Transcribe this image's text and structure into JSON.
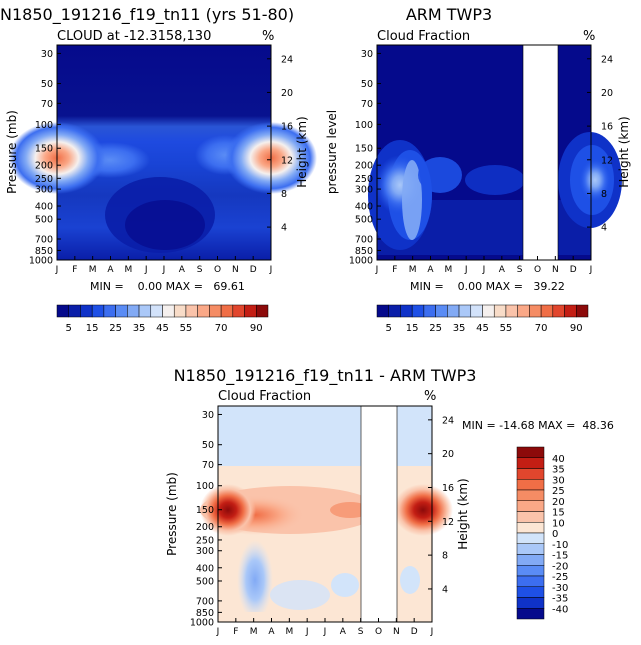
{
  "chart_data": [
    {
      "id": "model",
      "type": "heatmap",
      "title": "N1850_191216_f19_tn11 (yrs 51-80)",
      "subtitle": "CLOUD at -12.3158,130",
      "units": "%",
      "xlabel": "",
      "ylabel": "Pressure (mb)",
      "ylabel_right": "Height (km)",
      "x_ticks": [
        "J",
        "F",
        "M",
        "A",
        "M",
        "J",
        "J",
        "A",
        "S",
        "O",
        "N",
        "D",
        "J"
      ],
      "pressure_ticks": [
        30,
        50,
        70,
        100,
        150,
        200,
        250,
        300,
        400,
        500,
        700,
        850,
        1000
      ],
      "height_ticks": [
        24,
        20,
        16,
        12,
        8,
        4
      ],
      "min_text": "MIN =    0.00 MAX =   69.61",
      "min": 0.0,
      "max": 69.61,
      "missing_months": [],
      "colorbar": {
        "labels": [
          "5",
          "15",
          "25",
          "35",
          "45",
          "55",
          "70",
          "90"
        ],
        "colors": [
          "#050a8c",
          "#0a1ea8",
          "#0f32c8",
          "#1e50e6",
          "#3c6ef0",
          "#5a8cf5",
          "#82aaf5",
          "#aac8f8",
          "#d2e2fa",
          "#f5f0ee",
          "#f8dcc8",
          "#fac3aa",
          "#faa887",
          "#f58c64",
          "#f06e46",
          "#e1462d",
          "#c31e14",
          "#8c0a0a"
        ]
      }
    },
    {
      "id": "obs",
      "type": "heatmap",
      "title": "ARM TWP3",
      "subtitle": "Cloud Fraction",
      "units": "%",
      "ylabel": "pressure level",
      "ylabel_right": "Height (km)",
      "x_ticks": [
        "J",
        "F",
        "M",
        "A",
        "M",
        "J",
        "J",
        "A",
        "S",
        "O",
        "N",
        "D",
        "J"
      ],
      "pressure_ticks": [
        30,
        50,
        70,
        100,
        150,
        200,
        250,
        300,
        400,
        500,
        700,
        850,
        1000
      ],
      "height_ticks": [
        24,
        20,
        16,
        12,
        8,
        4
      ],
      "min_text": "MIN =    0.00 MAX =   39.22",
      "min": 0.0,
      "max": 39.22,
      "missing_months": [
        "S-N"
      ]
    },
    {
      "id": "diff",
      "type": "heatmap",
      "title": "N1850_191216_f19_tn11 - ARM TWP3",
      "subtitle": "Cloud Fraction",
      "units": "%",
      "ylabel": "Pressure (mb)",
      "ylabel_right": "Height (km)",
      "x_ticks": [
        "J",
        "F",
        "M",
        "A",
        "M",
        "J",
        "J",
        "A",
        "S",
        "O",
        "N",
        "D",
        "J"
      ],
      "pressure_ticks": [
        30,
        50,
        70,
        100,
        150,
        200,
        250,
        300,
        400,
        500,
        700,
        850,
        1000
      ],
      "height_ticks": [
        24,
        20,
        16,
        12,
        8,
        4
      ],
      "min_text": "MIN = -14.68 MAX =  48.36",
      "min": -14.68,
      "max": 48.36,
      "missing_months": [
        "S-N"
      ],
      "colorbar": {
        "labels": [
          "40",
          "35",
          "30",
          "25",
          "20",
          "15",
          "10",
          "0",
          "-10",
          "-15",
          "-20",
          "-25",
          "-30",
          "-35",
          "-40"
        ],
        "colors": [
          "#8c0a0a",
          "#c31e14",
          "#e1462d",
          "#f06e46",
          "#f58c64",
          "#faa887",
          "#fac3aa",
          "#fce6d4",
          "#d2e4fa",
          "#aac8f8",
          "#82aaf5",
          "#5a8cf5",
          "#3c6ef0",
          "#1e50e6",
          "#0f32c8",
          "#050a8c"
        ]
      }
    }
  ]
}
